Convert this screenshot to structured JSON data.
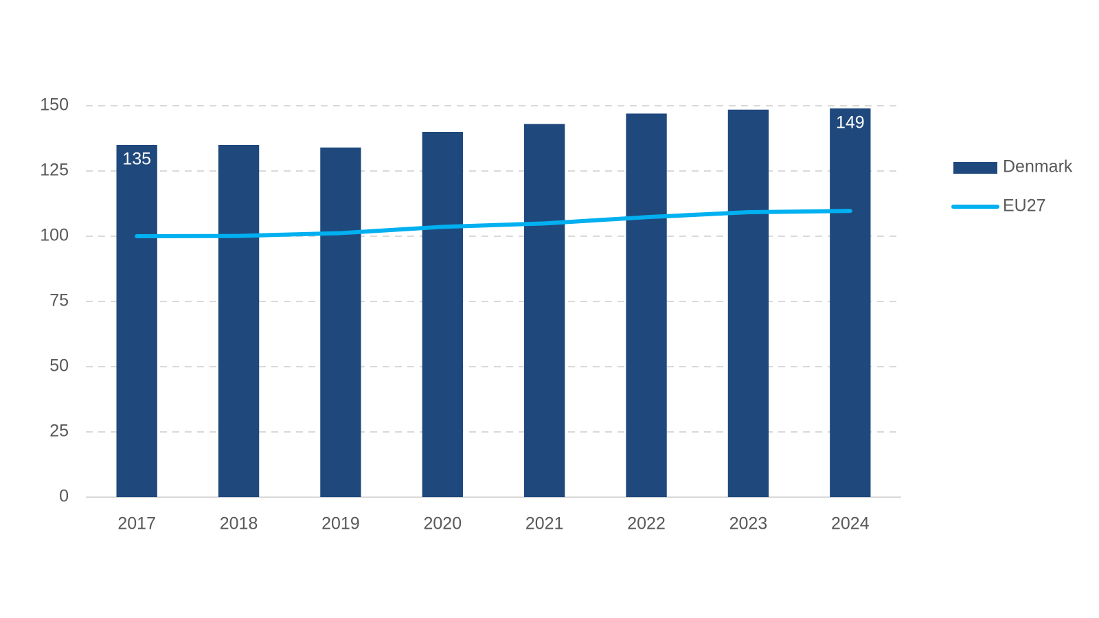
{
  "chart_data": {
    "type": "bar_line",
    "categories": [
      "2017",
      "2018",
      "2019",
      "2020",
      "2021",
      "2022",
      "2023",
      "2024"
    ],
    "series": [
      {
        "name": "Denmark",
        "type": "bar",
        "color": "#1f497d",
        "values": [
          135,
          135,
          134,
          140,
          143,
          147,
          148.5,
          149
        ],
        "value_labels": [
          "135",
          null,
          null,
          null,
          null,
          null,
          null,
          "149"
        ]
      },
      {
        "name": "EU27",
        "type": "line",
        "color": "#00b0f0",
        "values": [
          100,
          100.1,
          101.2,
          103.6,
          104.9,
          107.3,
          109.2,
          109.7
        ]
      }
    ],
    "ylim": [
      0,
      150
    ],
    "yticks": [
      0,
      25,
      50,
      75,
      100,
      125,
      150
    ],
    "grid": true,
    "legend": "right"
  }
}
